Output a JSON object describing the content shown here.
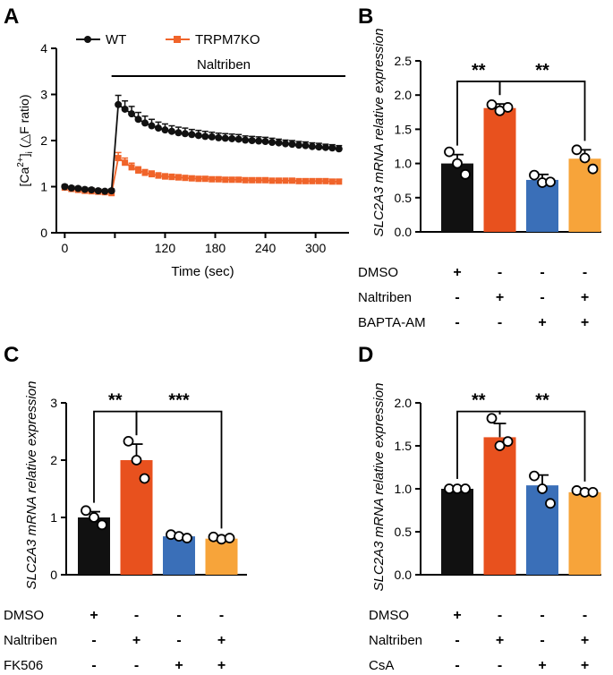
{
  "colors": {
    "black": "#111111",
    "orange_red": "#E8511E",
    "blue": "#3A6FB8",
    "amber": "#F7A43A",
    "wt_line": "#111111",
    "ko_line": "#F0642A"
  },
  "panels": {
    "A": {
      "letter": "A",
      "ylabel_prefix": "[Ca",
      "ylabel_sup": "2+",
      "ylabel_mid": "]",
      "ylabel_sub": "i",
      "ylabel_suffix": " (△F ratio)",
      "legend": [
        "WT",
        "TRPM7KO"
      ],
      "treatment_label": "Naltriben"
    },
    "B": {
      "letter": "B"
    },
    "C": {
      "letter": "C"
    },
    "D": {
      "letter": "D"
    }
  },
  "chart_data": [
    {
      "panel": "A",
      "type": "line",
      "xlabel": "Time (sec)",
      "ylabel": "[Ca2+]i (△F ratio)",
      "xlim": [
        -10,
        340
      ],
      "ylim": [
        0,
        4
      ],
      "xticks": [
        0,
        60,
        120,
        180,
        240,
        300
      ],
      "xticklabels": [
        "0",
        "",
        "120",
        "180",
        "240",
        "300"
      ],
      "yticks": [
        0,
        1,
        2,
        3,
        4
      ],
      "annotation": "Naltriben",
      "annotation_start": 56,
      "annotation_end": 340,
      "series": [
        {
          "name": "WT",
          "color": "#111111",
          "x": [
            0,
            8,
            16,
            24,
            32,
            40,
            48,
            56,
            64,
            72,
            80,
            88,
            96,
            104,
            112,
            120,
            128,
            136,
            144,
            152,
            160,
            168,
            176,
            184,
            192,
            200,
            208,
            216,
            224,
            232,
            240,
            248,
            256,
            264,
            272,
            280,
            288,
            296,
            304,
            312,
            320,
            328
          ],
          "y": [
            1.0,
            0.97,
            0.96,
            0.94,
            0.93,
            0.91,
            0.9,
            0.91,
            2.78,
            2.68,
            2.58,
            2.46,
            2.38,
            2.32,
            2.27,
            2.23,
            2.2,
            2.17,
            2.15,
            2.13,
            2.11,
            2.09,
            2.08,
            2.06,
            2.05,
            2.04,
            2.03,
            2.01,
            2.0,
            1.99,
            1.98,
            1.96,
            1.95,
            1.93,
            1.92,
            1.9,
            1.89,
            1.87,
            1.86,
            1.85,
            1.84,
            1.82
          ],
          "err": [
            0.04,
            0.04,
            0.04,
            0.04,
            0.04,
            0.04,
            0.04,
            0.04,
            0.2,
            0.18,
            0.16,
            0.15,
            0.15,
            0.14,
            0.13,
            0.13,
            0.12,
            0.12,
            0.12,
            0.11,
            0.11,
            0.11,
            0.1,
            0.1,
            0.1,
            0.1,
            0.1,
            0.09,
            0.09,
            0.09,
            0.09,
            0.09,
            0.08,
            0.08,
            0.08,
            0.08,
            0.08,
            0.08,
            0.08,
            0.07,
            0.07,
            0.07
          ]
        },
        {
          "name": "TRPM7KO",
          "color": "#F0642A",
          "x": [
            0,
            8,
            16,
            24,
            32,
            40,
            48,
            56,
            64,
            72,
            80,
            88,
            96,
            104,
            112,
            120,
            128,
            136,
            144,
            152,
            160,
            168,
            176,
            184,
            192,
            200,
            208,
            216,
            224,
            232,
            240,
            248,
            256,
            264,
            272,
            280,
            288,
            296,
            304,
            312,
            320,
            328
          ],
          "y": [
            0.98,
            0.95,
            0.93,
            0.91,
            0.9,
            0.89,
            0.88,
            0.86,
            1.62,
            1.52,
            1.42,
            1.35,
            1.3,
            1.27,
            1.24,
            1.22,
            1.21,
            1.2,
            1.19,
            1.18,
            1.17,
            1.17,
            1.16,
            1.16,
            1.15,
            1.15,
            1.15,
            1.14,
            1.14,
            1.14,
            1.14,
            1.13,
            1.13,
            1.13,
            1.13,
            1.12,
            1.12,
            1.12,
            1.12,
            1.12,
            1.11,
            1.11
          ],
          "err": [
            0.04,
            0.04,
            0.04,
            0.04,
            0.04,
            0.04,
            0.04,
            0.05,
            0.12,
            0.1,
            0.09,
            0.08,
            0.07,
            0.07,
            0.06,
            0.06,
            0.06,
            0.06,
            0.05,
            0.05,
            0.05,
            0.05,
            0.05,
            0.05,
            0.05,
            0.05,
            0.05,
            0.05,
            0.05,
            0.05,
            0.05,
            0.05,
            0.05,
            0.05,
            0.05,
            0.05,
            0.05,
            0.05,
            0.05,
            0.05,
            0.05,
            0.05
          ]
        }
      ]
    },
    {
      "panel": "B",
      "type": "bar",
      "ylabel_italic": "SLC2A3",
      "ylabel_rest": " mRNA relative expression",
      "ylim": [
        0,
        2.5
      ],
      "yticks": [
        0,
        0.5,
        1.0,
        1.5,
        2.0,
        2.5
      ],
      "yticklabels": [
        "0.0",
        "0.5",
        "1.0",
        "1.5",
        "2.0",
        "2.5"
      ],
      "categories": [
        "1",
        "2",
        "3",
        "4"
      ],
      "values": [
        1.0,
        1.81,
        0.76,
        1.07
      ],
      "errors": [
        0.13,
        0.06,
        0.08,
        0.13
      ],
      "points": [
        [
          1.17,
          1.0,
          0.84
        ],
        [
          1.86,
          1.77,
          1.82
        ],
        [
          0.83,
          0.72,
          0.73
        ],
        [
          1.2,
          1.08,
          0.92
        ]
      ],
      "colors": [
        "#111111",
        "#E8511E",
        "#3A6FB8",
        "#F7A43A"
      ],
      "significance": [
        {
          "from": 0,
          "to": 1,
          "label": "**",
          "y": 2.2
        },
        {
          "from": 1,
          "to": 3,
          "label": "**",
          "y": 2.2
        }
      ],
      "treatments": [
        {
          "label": "DMSO",
          "signs": [
            "+",
            "-",
            "-",
            "-"
          ]
        },
        {
          "label": "Naltriben",
          "signs": [
            "-",
            "+",
            "-",
            "+"
          ]
        },
        {
          "label": "BAPTA-AM",
          "signs": [
            "-",
            "-",
            "+",
            "+"
          ]
        }
      ]
    },
    {
      "panel": "C",
      "type": "bar",
      "ylabel_italic": "SLC2A3",
      "ylabel_rest": " mRNA relative expression",
      "ylim": [
        0,
        3
      ],
      "yticks": [
        0,
        1,
        2,
        3
      ],
      "yticklabels": [
        "0",
        "1",
        "2",
        "3"
      ],
      "categories": [
        "1",
        "2",
        "3",
        "4"
      ],
      "values": [
        1.0,
        2.0,
        0.67,
        0.63
      ],
      "errors": [
        0.1,
        0.28,
        0.03,
        0.02
      ],
      "points": [
        [
          1.12,
          1.0,
          0.87
        ],
        [
          2.33,
          2.0,
          1.68
        ],
        [
          0.7,
          0.67,
          0.64
        ],
        [
          0.66,
          0.62,
          0.64
        ]
      ],
      "colors": [
        "#111111",
        "#E8511E",
        "#3A6FB8",
        "#F7A43A"
      ],
      "significance": [
        {
          "from": 0,
          "to": 1,
          "label": "**",
          "y": 2.85
        },
        {
          "from": 1,
          "to": 3,
          "label": "***",
          "y": 2.85
        }
      ],
      "treatments": [
        {
          "label": "DMSO",
          "signs": [
            "+",
            "-",
            "-",
            "-"
          ]
        },
        {
          "label": "Naltriben",
          "signs": [
            "-",
            "+",
            "-",
            "+"
          ]
        },
        {
          "label": "FK506",
          "signs": [
            "-",
            "-",
            "+",
            "+"
          ]
        }
      ]
    },
    {
      "panel": "D",
      "type": "bar",
      "ylabel_italic": "SLC2A3",
      "ylabel_rest": " mRNA relative expression",
      "ylim": [
        0,
        2.0
      ],
      "yticks": [
        0,
        0.5,
        1.0,
        1.5,
        2.0
      ],
      "yticklabels": [
        "0.0",
        "0.5",
        "1.0",
        "1.5",
        "2.0"
      ],
      "categories": [
        "1",
        "2",
        "3",
        "4"
      ],
      "values": [
        1.0,
        1.6,
        1.04,
        0.96
      ],
      "errors": [
        0.01,
        0.16,
        0.12,
        0.02
      ],
      "points": [
        [
          1.0,
          1.0,
          1.0
        ],
        [
          1.82,
          1.5,
          1.55
        ],
        [
          1.15,
          1.0,
          0.83
        ],
        [
          0.98,
          0.96,
          0.96
        ]
      ],
      "colors": [
        "#111111",
        "#E8511E",
        "#3A6FB8",
        "#F7A43A"
      ],
      "significance": [
        {
          "from": 0,
          "to": 1,
          "label": "**",
          "y": 1.9
        },
        {
          "from": 1,
          "to": 3,
          "label": "**",
          "y": 1.9
        }
      ],
      "treatments": [
        {
          "label": "DMSO",
          "signs": [
            "+",
            "-",
            "-",
            "-"
          ]
        },
        {
          "label": "Naltriben",
          "signs": [
            "-",
            "+",
            "-",
            "+"
          ]
        },
        {
          "label": "CsA",
          "signs": [
            "-",
            "-",
            "+",
            "+"
          ]
        }
      ]
    }
  ]
}
